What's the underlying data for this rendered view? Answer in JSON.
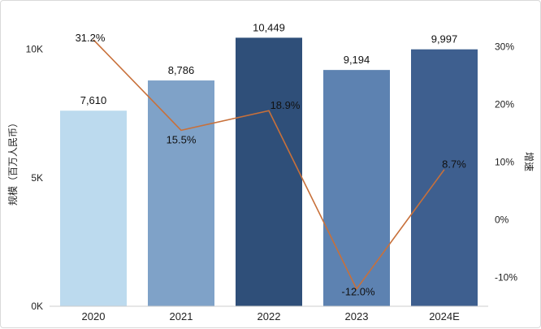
{
  "chart_data": {
    "type": "bar",
    "categories": [
      "2020",
      "2021",
      "2022",
      "2023",
      "2024E"
    ],
    "series": [
      {
        "values": [
          7610,
          8786,
          10449,
          9194,
          9997
        ],
        "value_labels": [
          "7,610",
          "8,786",
          "10,449",
          "9,194",
          "9,997"
        ],
        "colors": [
          "#bcdaee",
          "#7fa2c8",
          "#2f4f79",
          "#5d82b1",
          "#3e5f8f"
        ]
      },
      {
        "type": "line",
        "axis": "right",
        "values": [
          31.2,
          15.5,
          18.9,
          -12.0,
          8.7
        ],
        "value_labels": [
          "31.2%",
          "15.5%",
          "18.9%",
          "-12.0%",
          "8.7%"
        ],
        "color": "#c8703a"
      }
    ],
    "ylabel": "规模（百万人民币）",
    "ylim": [
      0,
      11000
    ],
    "yticks": [
      {
        "value": 0,
        "label": "0K"
      },
      {
        "value": 5000,
        "label": "5K"
      },
      {
        "value": 10000,
        "label": "10K"
      }
    ],
    "y2label": "增速",
    "y2lim": [
      -15,
      34
    ],
    "y2ticks": [
      {
        "value": -10,
        "label": "-10%"
      },
      {
        "value": 0,
        "label": "0%"
      },
      {
        "value": 10,
        "label": "10%"
      },
      {
        "value": 20,
        "label": "20%"
      },
      {
        "value": 30,
        "label": "30%"
      }
    ],
    "grid": false,
    "legend": "none"
  }
}
